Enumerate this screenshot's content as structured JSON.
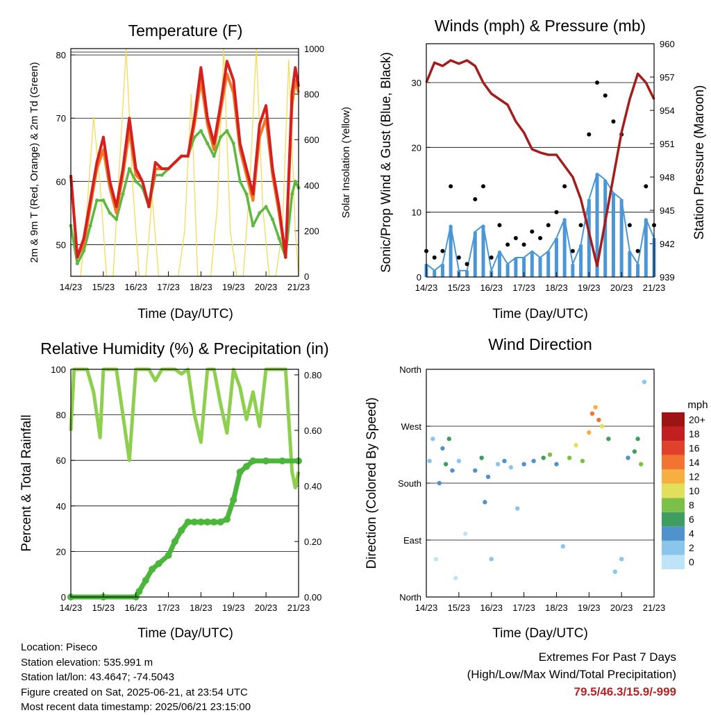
{
  "x_tick_labels": [
    "14/23",
    "15/23",
    "16/23",
    "17/23",
    "18/23",
    "19/23",
    "20/23",
    "21/23"
  ],
  "colors": {
    "temp_2m": "#d62020",
    "temp_9m": "#f07a24",
    "dewpoint": "#5db840",
    "solar": "#f6d957",
    "gust": "#000000",
    "wind": "#4a96d6",
    "pressure": "#a31d1d",
    "rh": "#8fcf4e",
    "precip": "#4ab63a",
    "grid": "#000000"
  },
  "panels": {
    "temperature": {
      "title": "Temperature (F)",
      "xlabel": "Time (Day/UTC)",
      "ylabel_left": "2m & 9m T (Red, Orange) & 2m Td (Green)",
      "ylabel_right": "Solar Insolation (Yellow)",
      "left_ticks": [
        "50",
        "60",
        "70",
        "80"
      ],
      "right_ticks": [
        "0",
        "200",
        "400",
        "600",
        "800",
        "1000"
      ]
    },
    "wind": {
      "title": "Winds (mph) & Pressure (mb)",
      "xlabel": "Time (Day/UTC)",
      "ylabel_left": "Sonic/Prop Wind & Gust (Blue, Black)",
      "ylabel_right": "Station Pressure (Maroon)",
      "left_ticks": [
        "0",
        "10",
        "20",
        "30"
      ],
      "right_ticks": [
        "939",
        "942",
        "945",
        "948",
        "951",
        "954",
        "957",
        "960"
      ]
    },
    "humidity": {
      "title": "Relative Humidity (%) & Precipitation (in)",
      "xlabel": "Time (Day/UTC)",
      "ylabel_left": "Percent & Total Rainfall",
      "left_ticks": [
        "0",
        "20",
        "40",
        "60",
        "80",
        "100"
      ],
      "right_ticks": [
        "0.00",
        "0.20",
        "0.40",
        "0.60",
        "0.80"
      ]
    },
    "direction": {
      "title": "Wind Direction",
      "xlabel": "Time (Day/UTC)",
      "ylabel_left": "Direction (Colored By Speed)",
      "left_ticks": [
        "North",
        "East",
        "South",
        "West",
        "North"
      ],
      "colorbar_title": "mph",
      "colorbar_labels": [
        "0",
        "2",
        "4",
        "6",
        "8",
        "10",
        "12",
        "14",
        "16",
        "18",
        "20+"
      ],
      "colorbar_colors": [
        "#bfe3f7",
        "#8ac6ec",
        "#4f92cd",
        "#3f9e5f",
        "#7cc04a",
        "#e2df5a",
        "#f7b03f",
        "#f27430",
        "#e0412b",
        "#c21f20",
        "#9c1414"
      ]
    }
  },
  "info": {
    "location": "Location: Piseco",
    "elevation": "Station elevation: 535.991 m",
    "latlon": "Station lat/lon: 43.4647; -74.5043",
    "created": "Figure created on Sat, 2025-06-21, at 23:54 UTC",
    "recent": "Most recent data timestamp: 2025/06/21 23:15:00"
  },
  "extremes": {
    "title": "Extremes For Past 7 Days",
    "subtitle": "(High/Low/Max Wind/Total Precipitation)",
    "values": "79.5/46.3/15.9/-999"
  },
  "chart_data": [
    {
      "type": "line",
      "panel": "temperature",
      "x_unit": "days since 14/23 UTC",
      "xlim": [
        0,
        7
      ],
      "ylim_left": [
        45,
        81
      ],
      "ylim_right": [
        0,
        1000
      ],
      "series": [
        {
          "name": "2m T (Red)",
          "x": [
            0,
            0.2,
            0.4,
            0.6,
            0.8,
            1,
            1.2,
            1.4,
            1.6,
            1.8,
            2,
            2.2,
            2.4,
            2.6,
            2.8,
            3,
            3.2,
            3.4,
            3.6,
            3.8,
            4,
            4.2,
            4.4,
            4.6,
            4.8,
            5,
            5.2,
            5.4,
            5.6,
            5.8,
            6,
            6.2,
            6.4,
            6.6,
            6.8,
            6.9,
            7
          ],
          "y": [
            61,
            48,
            51,
            57,
            63,
            67,
            60,
            56,
            62,
            70,
            62,
            60,
            56,
            63,
            62,
            62,
            63,
            64,
            64,
            70,
            78,
            70,
            66,
            72,
            79,
            76,
            66,
            62,
            58,
            69,
            72,
            62,
            56,
            48,
            74,
            78,
            75
          ]
        },
        {
          "name": "9m T (Orange)",
          "x": [
            0,
            0.2,
            0.4,
            0.6,
            0.8,
            1,
            1.2,
            1.4,
            1.6,
            1.8,
            2,
            2.2,
            2.4,
            2.6,
            2.8,
            3,
            3.2,
            3.4,
            3.6,
            3.8,
            4,
            4.2,
            4.4,
            4.6,
            4.8,
            5,
            5.2,
            5.4,
            5.6,
            5.8,
            6,
            6.2,
            6.4,
            6.6,
            6.8,
            6.9,
            7
          ],
          "y": [
            61,
            48,
            50,
            56,
            62,
            65,
            59,
            55,
            61,
            68,
            61,
            60,
            56,
            62,
            62,
            62,
            63,
            64,
            64,
            69,
            76,
            69,
            65,
            71,
            77,
            74,
            65,
            61,
            57,
            67,
            70,
            61,
            55,
            48,
            72,
            76,
            74
          ]
        },
        {
          "name": "2m Td (Green)",
          "x": [
            0,
            0.2,
            0.4,
            0.6,
            0.8,
            1,
            1.2,
            1.4,
            1.6,
            1.8,
            2,
            2.2,
            2.4,
            2.6,
            2.8,
            3,
            3.2,
            3.4,
            3.6,
            3.8,
            4,
            4.2,
            4.4,
            4.6,
            4.8,
            5,
            5.2,
            5.4,
            5.6,
            5.8,
            6,
            6.2,
            6.4,
            6.6,
            6.8,
            6.9,
            7
          ],
          "y": [
            53,
            47,
            49,
            53,
            57,
            57,
            55,
            54,
            58,
            62,
            60,
            59,
            56,
            61,
            61,
            62,
            63,
            64,
            64,
            67,
            68,
            66,
            64,
            67,
            68,
            66,
            60,
            58,
            53,
            55,
            56,
            54,
            51,
            48,
            58,
            60,
            59
          ]
        },
        {
          "name": "Solar Insolation (Yellow)",
          "x": [
            0,
            0.3,
            0.5,
            0.7,
            0.9,
            1.1,
            1.3,
            1.5,
            1.7,
            1.9,
            2.1,
            2.3,
            2.5,
            2.7,
            2.9,
            3.1,
            3.3,
            3.5,
            3.7,
            3.9,
            4.1,
            4.3,
            4.5,
            4.7,
            4.9,
            5.1,
            5.3,
            5.5,
            5.7,
            5.9,
            6.1,
            6.3,
            6.5,
            6.7,
            6.9,
            7
          ],
          "y": [
            0,
            0,
            300,
            700,
            400,
            0,
            0,
            500,
            1000,
            400,
            0,
            0,
            350,
            0,
            0,
            0,
            0,
            200,
            800,
            0,
            0,
            0,
            300,
            1000,
            200,
            0,
            0,
            400,
            1000,
            300,
            0,
            0,
            200,
            950,
            200,
            0
          ]
        }
      ]
    },
    {
      "type": "scatter",
      "panel": "wind",
      "x_unit": "days since 14/23 UTC",
      "xlim": [
        0,
        7
      ],
      "ylim_left": [
        0,
        36
      ],
      "ylim_right": [
        939,
        960
      ],
      "series": [
        {
          "name": "Gust (Black)",
          "x": [
            0,
            0.25,
            0.5,
            0.75,
            1,
            1.25,
            1.5,
            1.75,
            2,
            2.25,
            2.5,
            2.75,
            3,
            3.25,
            3.5,
            3.75,
            4,
            4.25,
            4.5,
            4.75,
            5,
            5.25,
            5.5,
            5.75,
            6,
            6.25,
            6.5,
            6.75,
            7
          ],
          "y": [
            4,
            3,
            4,
            14,
            3,
            2,
            12,
            14,
            3,
            8,
            5,
            6,
            5,
            7,
            6,
            8,
            10,
            14,
            4,
            8,
            22,
            30,
            28,
            24,
            22,
            8,
            4,
            14,
            8
          ]
        },
        {
          "name": "Wind (Blue)",
          "x": [
            0,
            0.25,
            0.5,
            0.75,
            1,
            1.25,
            1.5,
            1.75,
            2,
            2.25,
            2.5,
            2.75,
            3,
            3.25,
            3.5,
            3.75,
            4,
            4.25,
            4.5,
            4.75,
            5,
            5.25,
            5.5,
            5.75,
            6,
            6.25,
            6.5,
            6.75,
            7
          ],
          "y": [
            2,
            1,
            2,
            8,
            1,
            1,
            7,
            8,
            1,
            4,
            2,
            3,
            3,
            4,
            3,
            4,
            6,
            9,
            2,
            5,
            12,
            16,
            15,
            13,
            12,
            4,
            2,
            9,
            6
          ]
        },
        {
          "name": "Station Pressure (Maroon)",
          "x": [
            0,
            0.25,
            0.5,
            0.75,
            1,
            1.25,
            1.5,
            1.75,
            2,
            2.25,
            2.5,
            2.75,
            3,
            3.25,
            3.5,
            3.75,
            4,
            4.25,
            4.5,
            4.75,
            5,
            5.25,
            5.5,
            5.75,
            6,
            6.25,
            6.5,
            6.75,
            7
          ],
          "y": [
            956.5,
            958.3,
            958,
            958.5,
            958.2,
            958.5,
            958,
            956.5,
            955.5,
            955,
            954.5,
            953,
            952,
            950.5,
            950.2,
            950,
            950,
            949,
            948,
            946,
            943,
            940,
            944,
            948,
            952,
            955,
            957.3,
            956.5,
            955
          ]
        }
      ]
    },
    {
      "type": "line",
      "panel": "humidity",
      "x_unit": "days since 14/23 UTC",
      "xlim": [
        0,
        7
      ],
      "ylim_left": [
        0,
        100
      ],
      "ylim_right": [
        0,
        0.82
      ],
      "series": [
        {
          "name": "Relative Humidity",
          "x": [
            0,
            0.1,
            0.2,
            0.5,
            0.7,
            0.9,
            1,
            1.2,
            1.4,
            1.6,
            1.8,
            2,
            2.2,
            2.4,
            2.6,
            2.8,
            3,
            3.2,
            3.4,
            3.6,
            3.8,
            4,
            4.2,
            4.4,
            4.6,
            4.8,
            5,
            5.2,
            5.4,
            5.6,
            5.8,
            6,
            6.2,
            6.4,
            6.6,
            6.8,
            6.9,
            7
          ],
          "y": [
            73,
            100,
            100,
            100,
            90,
            70,
            100,
            100,
            100,
            80,
            60,
            100,
            100,
            100,
            95,
            100,
            100,
            100,
            98,
            100,
            80,
            68,
            100,
            100,
            85,
            72,
            100,
            92,
            78,
            90,
            75,
            100,
            100,
            100,
            100,
            55,
            48,
            55
          ]
        },
        {
          "name": "Total Precipitation",
          "x": [
            0,
            1,
            2,
            2.1,
            2.3,
            2.5,
            2.7,
            3,
            3.2,
            3.4,
            3.6,
            3.8,
            4,
            4.2,
            4.4,
            4.6,
            4.8,
            5,
            5.2,
            5.4,
            5.6,
            6,
            6.5,
            7
          ],
          "y": [
            0,
            0,
            0,
            0.02,
            0.06,
            0.1,
            0.12,
            0.15,
            0.2,
            0.24,
            0.27,
            0.27,
            0.27,
            0.27,
            0.27,
            0.27,
            0.28,
            0.35,
            0.45,
            0.47,
            0.49,
            0.49,
            0.49,
            0.49
          ]
        }
      ]
    },
    {
      "type": "scatter",
      "panel": "direction",
      "x_unit": "days since 14/23 UTC",
      "xlim": [
        0,
        7
      ],
      "ylim_left": [
        0,
        360
      ],
      "y_unit": "degrees (North=0, East=90, South=180, West=270, North=360)",
      "points": [
        {
          "x": 0.1,
          "y": 215,
          "s": 2
        },
        {
          "x": 0.2,
          "y": 250,
          "s": 3
        },
        {
          "x": 0.3,
          "y": 60,
          "s": 1
        },
        {
          "x": 0.4,
          "y": 180,
          "s": 4
        },
        {
          "x": 0.5,
          "y": 235,
          "s": 5
        },
        {
          "x": 0.6,
          "y": 210,
          "s": 7
        },
        {
          "x": 0.7,
          "y": 250,
          "s": 6
        },
        {
          "x": 0.8,
          "y": 200,
          "s": 5
        },
        {
          "x": 0.9,
          "y": 30,
          "s": 1
        },
        {
          "x": 1.0,
          "y": 215,
          "s": 3
        },
        {
          "x": 1.2,
          "y": 100,
          "s": 1
        },
        {
          "x": 1.5,
          "y": 200,
          "s": 4
        },
        {
          "x": 1.7,
          "y": 220,
          "s": 7
        },
        {
          "x": 1.8,
          "y": 150,
          "s": 4
        },
        {
          "x": 1.9,
          "y": 190,
          "s": 5
        },
        {
          "x": 2.0,
          "y": 60,
          "s": 2
        },
        {
          "x": 2.2,
          "y": 210,
          "s": 3
        },
        {
          "x": 2.4,
          "y": 215,
          "s": 4
        },
        {
          "x": 2.6,
          "y": 205,
          "s": 3
        },
        {
          "x": 2.8,
          "y": 140,
          "s": 2
        },
        {
          "x": 3.0,
          "y": 210,
          "s": 4
        },
        {
          "x": 3.3,
          "y": 215,
          "s": 5
        },
        {
          "x": 3.6,
          "y": 220,
          "s": 7
        },
        {
          "x": 3.8,
          "y": 225,
          "s": 8
        },
        {
          "x": 4.0,
          "y": 210,
          "s": 5
        },
        {
          "x": 4.2,
          "y": 80,
          "s": 2
        },
        {
          "x": 4.4,
          "y": 220,
          "s": 9
        },
        {
          "x": 4.6,
          "y": 240,
          "s": 11
        },
        {
          "x": 4.8,
          "y": 215,
          "s": 9
        },
        {
          "x": 5.0,
          "y": 260,
          "s": 12
        },
        {
          "x": 5.1,
          "y": 290,
          "s": 14
        },
        {
          "x": 5.2,
          "y": 300,
          "s": 13
        },
        {
          "x": 5.3,
          "y": 280,
          "s": 15
        },
        {
          "x": 5.4,
          "y": 270,
          "s": 11
        },
        {
          "x": 5.6,
          "y": 250,
          "s": 6
        },
        {
          "x": 5.8,
          "y": 40,
          "s": 2
        },
        {
          "x": 6.0,
          "y": 60,
          "s": 3
        },
        {
          "x": 6.2,
          "y": 220,
          "s": 5
        },
        {
          "x": 6.4,
          "y": 230,
          "s": 7
        },
        {
          "x": 6.5,
          "y": 250,
          "s": 6
        },
        {
          "x": 6.6,
          "y": 210,
          "s": 9
        },
        {
          "x": 6.7,
          "y": 340,
          "s": 3
        }
      ]
    }
  ]
}
